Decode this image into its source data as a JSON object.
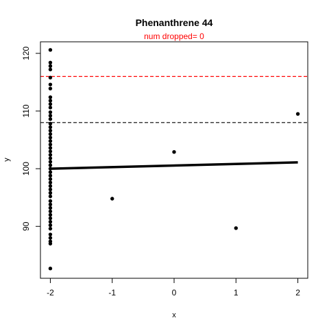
{
  "chart_data": {
    "type": "scatter",
    "title": "Phenanthrene 44",
    "subtitle": "num dropped= 0",
    "subtitle_color": "#ff0000",
    "xlabel": "x",
    "ylabel": "y",
    "xlim": [
      -2.16,
      2.16
    ],
    "ylim": [
      81.0,
      122.0
    ],
    "xticks": [
      -2,
      -1,
      0,
      1,
      2
    ],
    "yticks": [
      90,
      100,
      110,
      120
    ],
    "grid": false,
    "points": [
      {
        "x": -2,
        "y": 120.6
      },
      {
        "x": -2,
        "y": 118.4
      },
      {
        "x": -2,
        "y": 117.8
      },
      {
        "x": -2,
        "y": 117.2
      },
      {
        "x": -2,
        "y": 115.8
      },
      {
        "x": -2,
        "y": 114.6
      },
      {
        "x": -2,
        "y": 113.9
      },
      {
        "x": -2,
        "y": 112.4
      },
      {
        "x": -2,
        "y": 111.8
      },
      {
        "x": -2,
        "y": 111.2
      },
      {
        "x": -2,
        "y": 110.6
      },
      {
        "x": -2,
        "y": 109.8
      },
      {
        "x": -2,
        "y": 109.2
      },
      {
        "x": -2,
        "y": 108.6
      },
      {
        "x": -2,
        "y": 107.8
      },
      {
        "x": -2,
        "y": 107.2
      },
      {
        "x": -2,
        "y": 106.6
      },
      {
        "x": -2,
        "y": 106.0
      },
      {
        "x": -2,
        "y": 105.4
      },
      {
        "x": -2,
        "y": 104.8
      },
      {
        "x": -2,
        "y": 104.2
      },
      {
        "x": -2,
        "y": 103.6
      },
      {
        "x": -2,
        "y": 103.0
      },
      {
        "x": -2,
        "y": 102.4
      },
      {
        "x": -2,
        "y": 101.8
      },
      {
        "x": -2,
        "y": 101.2
      },
      {
        "x": -2,
        "y": 100.6
      },
      {
        "x": -2,
        "y": 100.0
      },
      {
        "x": -2,
        "y": 99.4
      },
      {
        "x": -2,
        "y": 98.8
      },
      {
        "x": -2,
        "y": 98.2
      },
      {
        "x": -2,
        "y": 97.6
      },
      {
        "x": -2,
        "y": 97.0
      },
      {
        "x": -2,
        "y": 96.4
      },
      {
        "x": -2,
        "y": 95.8
      },
      {
        "x": -2,
        "y": 95.2
      },
      {
        "x": -2,
        "y": 94.4
      },
      {
        "x": -2,
        "y": 93.8
      },
      {
        "x": -2,
        "y": 93.2
      },
      {
        "x": -2,
        "y": 92.6
      },
      {
        "x": -2,
        "y": 92.0
      },
      {
        "x": -2,
        "y": 91.4
      },
      {
        "x": -2,
        "y": 90.8
      },
      {
        "x": -2,
        "y": 90.2
      },
      {
        "x": -2,
        "y": 89.6
      },
      {
        "x": -2,
        "y": 88.6
      },
      {
        "x": -2,
        "y": 88.0
      },
      {
        "x": -2,
        "y": 87.4
      },
      {
        "x": -2,
        "y": 87.0
      },
      {
        "x": -2,
        "y": 82.7
      },
      {
        "x": -1,
        "y": 94.8
      },
      {
        "x": 0,
        "y": 102.9
      },
      {
        "x": 1,
        "y": 89.7
      },
      {
        "x": 2,
        "y": 109.5
      }
    ],
    "fit_line": {
      "x": [
        -2,
        2
      ],
      "y": [
        100.0,
        101.1
      ],
      "color": "#000000"
    },
    "hlines": [
      {
        "y": 116.0,
        "color": "#ff0000",
        "style": "dashed"
      },
      {
        "y": 108.0,
        "color": "#000000",
        "style": "dashed"
      }
    ]
  }
}
